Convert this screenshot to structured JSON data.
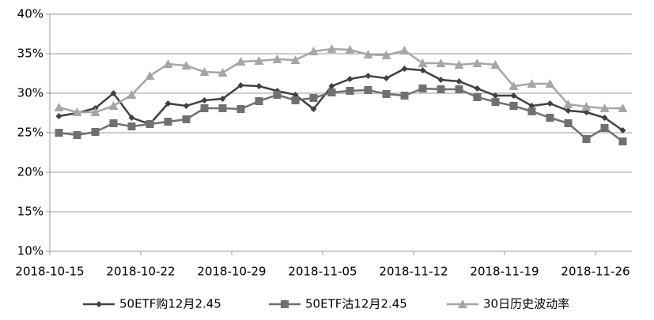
{
  "chart_data": {
    "type": "line",
    "categories": [
      "2018-10-15",
      null,
      null,
      null,
      null,
      "2018-10-22",
      null,
      null,
      null,
      null,
      "2018-10-29",
      null,
      null,
      null,
      null,
      "2018-11-05",
      null,
      null,
      null,
      null,
      "2018-11-12",
      null,
      null,
      null,
      null,
      "2018-11-19",
      null,
      null,
      null,
      null,
      "2018-11-26",
      null
    ],
    "series": [
      {
        "name": "50ETF购12月2.45",
        "color": "#404040",
        "marker": "diamond",
        "values": [
          27.1,
          27.5,
          28.1,
          30.0,
          26.9,
          26.1,
          28.7,
          28.4,
          29.1,
          29.3,
          31.0,
          30.9,
          30.3,
          29.8,
          28.0,
          30.9,
          31.8,
          32.2,
          31.9,
          33.1,
          32.9,
          31.7,
          31.5,
          30.6,
          29.7,
          29.7,
          28.4,
          28.7,
          27.8,
          27.6,
          26.9,
          25.3
        ]
      },
      {
        "name": "50ETF沽12月2.45",
        "color": "#707070",
        "marker": "square",
        "values": [
          25.0,
          24.7,
          25.1,
          26.2,
          25.8,
          26.1,
          26.4,
          26.7,
          28.1,
          28.1,
          28.0,
          29.0,
          29.8,
          29.1,
          29.4,
          30.1,
          30.3,
          30.4,
          29.9,
          29.7,
          30.6,
          30.5,
          30.5,
          29.5,
          28.9,
          28.4,
          27.7,
          26.9,
          26.2,
          24.2,
          25.6,
          23.9
        ]
      },
      {
        "name": "30日历史波动率",
        "color": "#a6a6a6",
        "marker": "triangle",
        "values": [
          28.2,
          27.6,
          27.6,
          28.4,
          29.8,
          32.2,
          33.7,
          33.5,
          32.7,
          32.6,
          34.0,
          34.1,
          34.3,
          34.2,
          35.3,
          35.6,
          35.5,
          34.9,
          34.8,
          35.4,
          33.8,
          33.8,
          33.6,
          33.8,
          33.6,
          30.9,
          31.2,
          31.2,
          28.6,
          28.3,
          28.1,
          28.1
        ]
      }
    ],
    "ylim": [
      10,
      40
    ],
    "yticks": [
      {
        "value": 10,
        "label": "10%"
      },
      {
        "value": 15,
        "label": "15%"
      },
      {
        "value": 20,
        "label": "20%"
      },
      {
        "value": 25,
        "label": "25%"
      },
      {
        "value": 30,
        "label": "30%"
      },
      {
        "value": 35,
        "label": "35%"
      },
      {
        "value": 40,
        "label": "40%"
      }
    ],
    "grid": true,
    "legend": "bottom"
  }
}
